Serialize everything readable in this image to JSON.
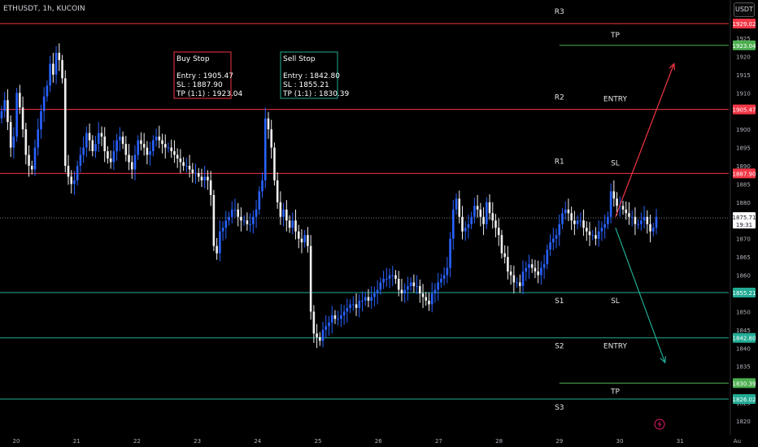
{
  "header": {
    "symbol": "ETHUSDT, 1h, KUCOIN",
    "currency_button": "USDT"
  },
  "colors": {
    "bull": "#2962ff",
    "bear": "#f0f0f0",
    "resistance": "#f23645",
    "support": "#22ab94",
    "tp_line": "#4caf50",
    "last_price": "#787b86"
  },
  "icons": {
    "alert": "lightning-icon"
  },
  "chart_data": {
    "type": "candlestick",
    "symbol": "ETHUSDT",
    "interval": "1h",
    "exchange": "KUCOIN",
    "ylim": [
      1818,
      1932
    ],
    "y_ticks": [
      1820,
      1825,
      1830,
      1835,
      1840,
      1845,
      1850,
      1855,
      1860,
      1865,
      1870,
      1875,
      1880,
      1885,
      1890,
      1895,
      1900,
      1905,
      1910,
      1915,
      1920,
      1925
    ],
    "x_ticks": [
      "20",
      "21",
      "22",
      "23",
      "24",
      "25",
      "26",
      "27",
      "28",
      "29",
      "30",
      "31",
      "Au"
    ],
    "last_price": 1875.71,
    "countdown": "19:31",
    "price_labels": [
      {
        "value": 1929.02,
        "text": "1929.02",
        "kind": "resistance"
      },
      {
        "value": 1923.04,
        "text": "1923.04",
        "kind": "tp"
      },
      {
        "value": 1905.47,
        "text": "1905.47",
        "kind": "resistance"
      },
      {
        "value": 1887.9,
        "text": "1887.90",
        "kind": "resistance"
      },
      {
        "value": 1855.21,
        "text": "1855.21",
        "kind": "support"
      },
      {
        "value": 1842.8,
        "text": "1842.80",
        "kind": "support"
      },
      {
        "value": 1830.39,
        "text": "1830.39",
        "kind": "tp"
      },
      {
        "value": 1826.02,
        "text": "1826.02",
        "kind": "support"
      }
    ],
    "levels": [
      {
        "name": "R3",
        "value": 1929.02,
        "kind": "resistance"
      },
      {
        "name": "R2",
        "value": 1905.47,
        "kind": "resistance"
      },
      {
        "name": "R1",
        "value": 1887.9,
        "kind": "resistance"
      },
      {
        "name": "S1",
        "value": 1855.21,
        "kind": "support"
      },
      {
        "name": "S2",
        "value": 1842.8,
        "kind": "support"
      },
      {
        "name": "S3",
        "value": 1826.02,
        "kind": "support"
      }
    ],
    "tp_lines": [
      {
        "value": 1923.04,
        "kind": "tp"
      },
      {
        "value": 1830.39,
        "kind": "tp"
      }
    ],
    "annotations": [
      {
        "text": "TP",
        "price": 1923.04,
        "day": 29.75
      },
      {
        "text": "ENTRY",
        "price": 1905.47,
        "day": 29.75
      },
      {
        "text": "SL",
        "price": 1887.9,
        "day": 29.75
      },
      {
        "text": "SL",
        "price": 1855.21,
        "day": 29.75
      },
      {
        "text": "ENTRY",
        "price": 1842.8,
        "day": 29.75
      },
      {
        "text": "TP",
        "price": 1830.39,
        "day": 29.75
      }
    ],
    "boxes": [
      {
        "kind": "buy",
        "title": "Buy Stop",
        "lines": [
          "Entry : 1905.47",
          "SL : 1887.90",
          "TP (1:1) : 1923.04"
        ]
      },
      {
        "kind": "sell",
        "title": "Sell Stop",
        "lines": [
          "Entry : 1842.80",
          "SL : 1855.21",
          "TP (1:1) : 1830.39"
        ]
      }
    ],
    "arrows": [
      {
        "kind": "up",
        "from": [
          29.93,
          1876
        ],
        "to": [
          30.9,
          1918
        ]
      },
      {
        "kind": "down",
        "from": [
          29.93,
          1873
        ],
        "to": [
          30.75,
          1836
        ]
      }
    ],
    "closes": [
      1905,
      1908,
      1902,
      1895,
      1898,
      1910,
      1906,
      1900,
      1893,
      1890,
      1889,
      1895,
      1900,
      1905,
      1909,
      1912,
      1918,
      1915,
      1921,
      1919,
      1914,
      1890,
      1887,
      1885,
      1886,
      1890,
      1893,
      1895,
      1899,
      1897,
      1894,
      1896,
      1899,
      1898,
      1894,
      1892,
      1891,
      1894,
      1897,
      1898,
      1896,
      1893,
      1891,
      1889,
      1893,
      1897,
      1896,
      1895,
      1893,
      1894,
      1897,
      1898,
      1897,
      1896,
      1895,
      1895,
      1894,
      1893,
      1892,
      1891,
      1890,
      1890,
      1889,
      1888,
      1888,
      1887,
      1886,
      1887,
      1886,
      1882,
      1868,
      1866,
      1872,
      1873,
      1875,
      1876,
      1878,
      1878,
      1876,
      1875,
      1875,
      1874,
      1874,
      1876,
      1878,
      1883,
      1886,
      1903,
      1900,
      1895,
      1886,
      1880,
      1876,
      1878,
      1875,
      1873,
      1875,
      1872,
      1870,
      1869,
      1871,
      1868,
      1850,
      1844,
      1843,
      1842,
      1845,
      1846,
      1847,
      1849,
      1848,
      1848,
      1849,
      1850,
      1851,
      1852,
      1852,
      1851,
      1853,
      1853,
      1854,
      1853,
      1854,
      1855,
      1856,
      1858,
      1859,
      1859,
      1860,
      1860,
      1859,
      1856,
      1855,
      1856,
      1857,
      1858,
      1857,
      1857,
      1855,
      1854,
      1853,
      1852,
      1855,
      1856,
      1858,
      1859,
      1860,
      1862,
      1870,
      1878,
      1881,
      1876,
      1872,
      1873,
      1874,
      1876,
      1879,
      1878,
      1876,
      1874,
      1880,
      1877,
      1875,
      1873,
      1871,
      1866,
      1865,
      1861,
      1860,
      1858,
      1858,
      1857,
      1861,
      1862,
      1863,
      1862,
      1861,
      1860,
      1862,
      1863,
      1867,
      1869,
      1870,
      1871,
      1874,
      1877,
      1878,
      1877,
      1875,
      1874,
      1875,
      1875,
      1873,
      1872,
      1871,
      1871,
      1870,
      1872,
      1873,
      1874,
      1876,
      1883,
      1881,
      1879,
      1879,
      1878,
      1877,
      1876,
      1876,
      1874,
      1874,
      1875,
      1876,
      1874,
      1872,
      1873,
      1876
    ]
  }
}
